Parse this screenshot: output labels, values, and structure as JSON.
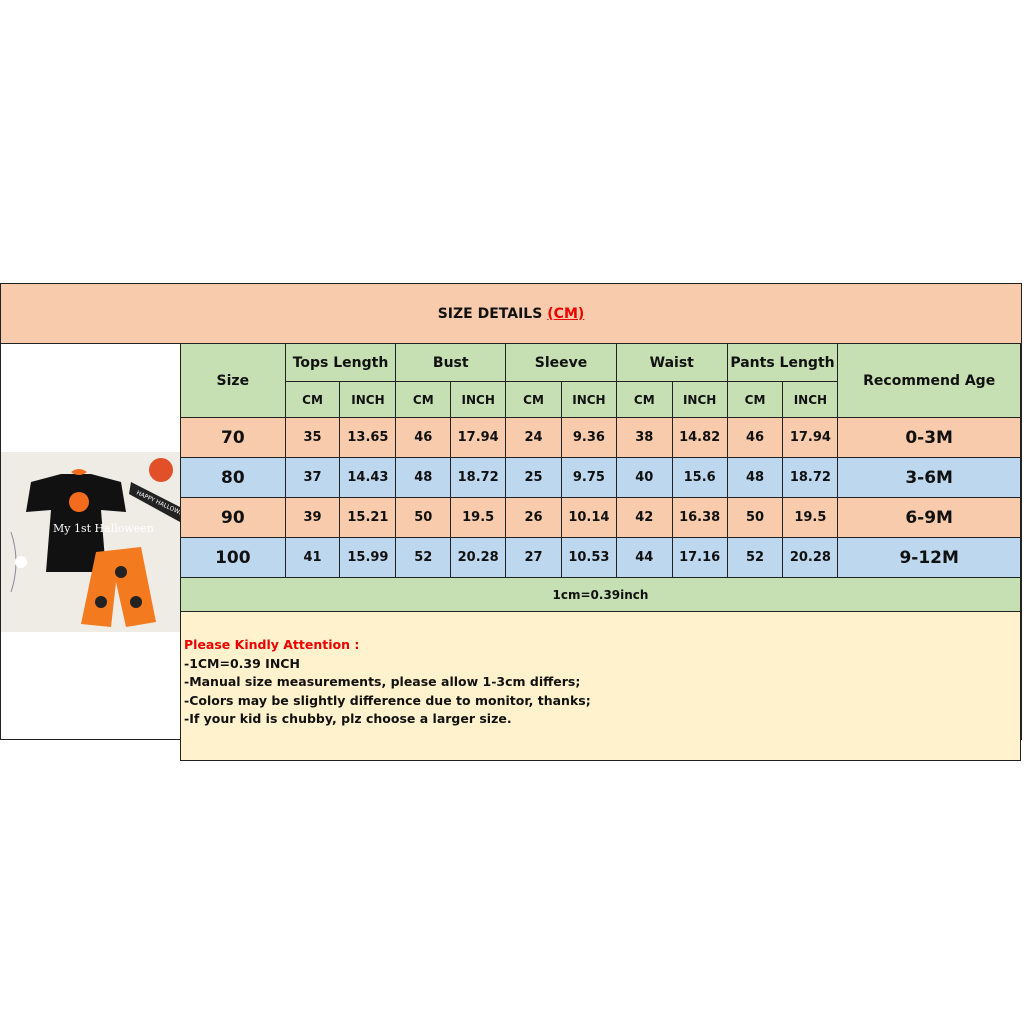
{
  "title": {
    "text": "SIZE DETAILS",
    "unit": "(CM)"
  },
  "photo": {
    "alt": "Halloween baby outfit",
    "print": "My 1st Halloween",
    "banner": "HAPPY HALLOWEEN"
  },
  "headers": {
    "size": "Size",
    "groups": [
      "Tops Length",
      "Bust",
      "Sleeve",
      "Waist",
      "Pants Length"
    ],
    "cm": "CM",
    "inch": "INCH",
    "age": "Recommend Age"
  },
  "rows": [
    {
      "size": "70",
      "vals": [
        "35",
        "13.65",
        "46",
        "17.94",
        "24",
        "9.36",
        "38",
        "14.82",
        "46",
        "17.94"
      ],
      "age": "0-3M",
      "color": "#f8cbad"
    },
    {
      "size": "80",
      "vals": [
        "37",
        "14.43",
        "48",
        "18.72",
        "25",
        "9.75",
        "40",
        "15.6",
        "48",
        "18.72"
      ],
      "age": "3-6M",
      "color": "#bdd7ee"
    },
    {
      "size": "90",
      "vals": [
        "39",
        "15.21",
        "50",
        "19.5",
        "26",
        "10.14",
        "42",
        "16.38",
        "50",
        "19.5"
      ],
      "age": "6-9M",
      "color": "#f8cbad"
    },
    {
      "size": "100",
      "vals": [
        "41",
        "15.99",
        "52",
        "20.28",
        "27",
        "10.53",
        "44",
        "17.16",
        "52",
        "20.28"
      ],
      "age": "9-12M",
      "color": "#bdd7ee"
    }
  ],
  "conversion": "1cm=0.39inch",
  "attention": {
    "heading": "Please Kindly Attention :",
    "lines": [
      "-1CM=0.39 INCH",
      "-Manual size measurements, please allow 1-3cm differs;",
      "-Colors may be slightly difference due to monitor, thanks;",
      "-If your kid is chubby, plz choose a larger size."
    ]
  }
}
